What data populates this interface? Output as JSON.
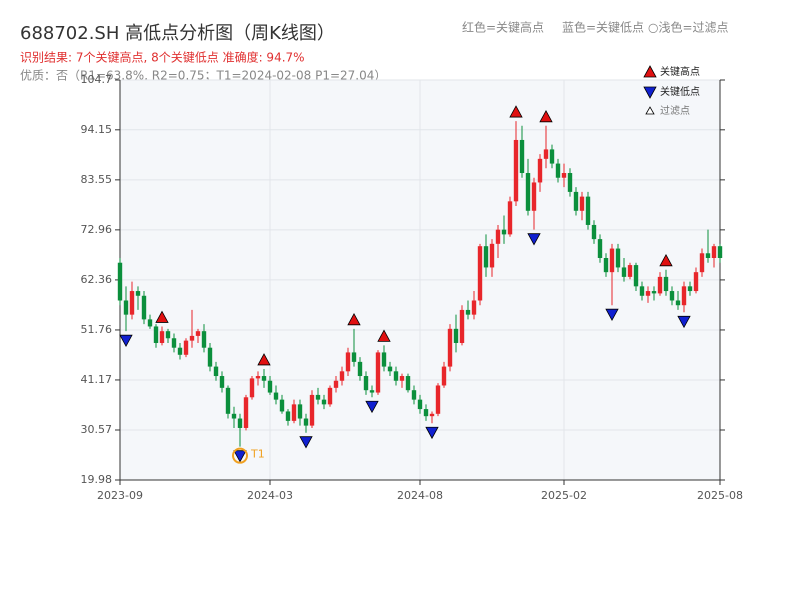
{
  "chart_data": {
    "type": "candlestick",
    "title": "688702.SH 高低点分析图（周K线图）",
    "header_legend": [
      "红色=关键高点",
      "蓝色=关键低点",
      "○浅色=过滤点"
    ],
    "subtitle": "识别结果: 7个关键高点, 8个关键低点  准确度: 94.7%",
    "note": "优质：否（R1=63.8%, R2=0.75；T1=2024-02-08 P1=27.04）",
    "legend": [
      "关键高点",
      "关键低点",
      "过滤点"
    ],
    "up_color": "#e8262b",
    "down_color": "#0b8f3c",
    "high_color": "#e01010",
    "low_color": "#1020d0",
    "filtered_color": "#ffffff",
    "annotation_color": "#f0a020",
    "grid": true,
    "xlim": [
      0,
      100
    ],
    "xticks": [
      {
        "value": 0,
        "label": "2023-09"
      },
      {
        "value": 25,
        "label": "2024-03"
      },
      {
        "value": 50,
        "label": "2024-08"
      },
      {
        "value": 74,
        "label": "2025-02"
      },
      {
        "value": 100,
        "label": "2025-08"
      }
    ],
    "ylim": [
      19.98,
      104.7
    ],
    "yticks": [
      19.98,
      30.57,
      41.17,
      51.76,
      62.36,
      72.96,
      83.55,
      94.15,
      104.7
    ],
    "open": [
      66,
      58,
      55,
      60,
      59,
      54,
      52.5,
      49,
      51.5,
      50,
      48,
      46.5,
      49.5,
      50.5,
      51.5,
      48,
      44,
      42,
      39.5,
      34,
      33,
      31,
      37.5,
      41.5,
      42,
      41,
      38.5,
      37,
      34.5,
      32.5,
      36,
      33,
      31.5,
      38,
      37,
      36,
      39.5,
      41,
      43,
      47,
      45,
      42,
      39,
      38.5,
      47,
      44,
      43,
      41,
      42,
      39,
      37,
      35,
      33.5,
      34,
      40,
      44,
      52,
      49,
      56,
      55,
      58,
      69.5,
      65,
      70,
      73,
      72,
      79,
      92,
      85,
      77,
      83,
      88,
      90,
      87,
      84,
      85,
      81,
      77,
      80,
      74,
      71,
      67,
      64,
      69,
      65,
      63,
      65.5,
      61,
      59,
      60,
      59.5,
      63,
      60,
      58,
      57,
      61,
      60,
      64,
      68,
      67,
      69.5
    ],
    "high": [
      67,
      61,
      62,
      61,
      60,
      55,
      53,
      52.5,
      52,
      51,
      49,
      50,
      56,
      52,
      53,
      49,
      45,
      43,
      40,
      35.5,
      34,
      38,
      42,
      43,
      43.5,
      42,
      40,
      38,
      35,
      37,
      37,
      34,
      39,
      39.5,
      38,
      40,
      42,
      44,
      48,
      52,
      46,
      43,
      40,
      47.5,
      48.5,
      45,
      44,
      42.5,
      42.5,
      40,
      38,
      36,
      34.5,
      40.5,
      45,
      53,
      55,
      57,
      58,
      60,
      70,
      72,
      71,
      74,
      76,
      80,
      96,
      95,
      88,
      84,
      89,
      95,
      91,
      88,
      87,
      86,
      82,
      81,
      81,
      75,
      72,
      68,
      70,
      70,
      67,
      66,
      66,
      62,
      61,
      61,
      64,
      64.5,
      61,
      60,
      62,
      62,
      65,
      69,
      73,
      70,
      70
    ],
    "low": [
      57,
      51.5,
      54,
      56,
      53,
      52,
      48,
      48.5,
      49,
      47,
      45.5,
      46,
      48,
      49,
      47,
      43,
      41,
      38.5,
      33,
      31,
      27.04,
      30.5,
      37,
      40,
      39.5,
      38,
      36,
      34,
      31.5,
      32,
      31.5,
      30,
      31,
      36,
      35,
      35.5,
      38.5,
      40,
      42,
      44,
      41,
      38,
      37.5,
      38,
      43,
      42,
      40,
      39.5,
      38.5,
      36,
      34,
      32.5,
      32,
      33.5,
      39.5,
      43,
      47,
      48.5,
      54,
      54,
      57,
      63,
      63,
      67,
      70,
      71.5,
      78,
      84,
      76,
      73,
      81,
      86,
      86,
      83,
      82,
      80,
      76,
      75,
      73,
      70,
      66,
      63,
      57,
      64,
      62,
      62.5,
      60,
      58,
      57.5,
      58,
      59,
      59,
      57,
      56,
      55.5,
      59,
      59.5,
      63,
      66,
      65,
      66
    ],
    "close": [
      58,
      55,
      60,
      59,
      54,
      52.5,
      49,
      51.5,
      50,
      48,
      46.5,
      49.5,
      50.5,
      51.5,
      48,
      44,
      42,
      39.5,
      34,
      33,
      31,
      37.5,
      41.5,
      42,
      41,
      38.5,
      37,
      34.5,
      32.5,
      36,
      33,
      31.5,
      38,
      37,
      36,
      39.5,
      41,
      43,
      47,
      45,
      42,
      39,
      38.5,
      47,
      44,
      43,
      41,
      42,
      39,
      37,
      35,
      33.5,
      34,
      40,
      44,
      52,
      49,
      56,
      55,
      58,
      69.5,
      65,
      70,
      73,
      72,
      79,
      92,
      85,
      77,
      83,
      88,
      90,
      87,
      84,
      85,
      81,
      77,
      80,
      74,
      71,
      67,
      64,
      69,
      65,
      63,
      65.5,
      61,
      59,
      60,
      59.5,
      63,
      60,
      58,
      57,
      61,
      60,
      64,
      68,
      67,
      69.5,
      67
    ],
    "key_highs": [
      7,
      24,
      39,
      44,
      66,
      71,
      91
    ],
    "key_lows": [
      1,
      20,
      31,
      42,
      52,
      69,
      82,
      94
    ],
    "annotation": {
      "label": "T1",
      "index": 20
    }
  }
}
